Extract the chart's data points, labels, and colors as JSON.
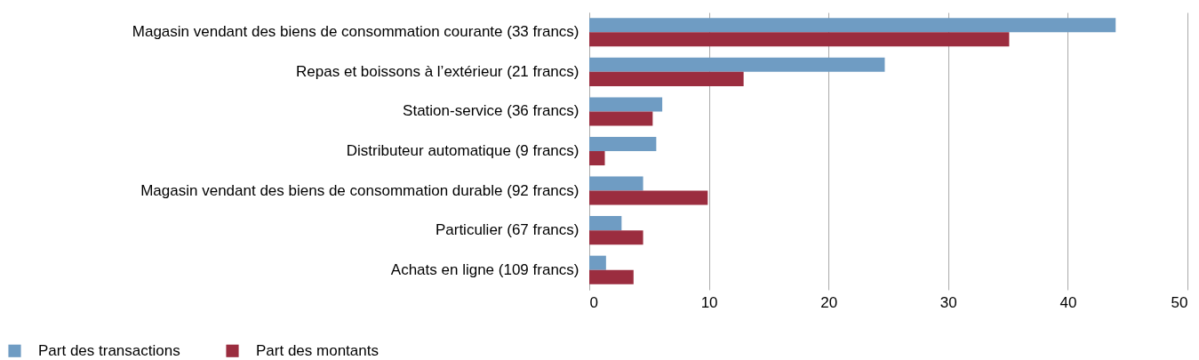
{
  "chart_data": {
    "type": "bar",
    "orientation": "horizontal",
    "categories": [
      "Magasin vendant des biens de consommation courante (33 francs)",
      "Repas et boissons à l’extérieur (21 francs)",
      "Station-service (36 francs)",
      "Distributeur automatique (9 francs)",
      "Magasin vendant des biens de consommation durable (92 francs)",
      "Particulier (67 francs)",
      "Achats en ligne (109 francs)"
    ],
    "series": [
      {
        "name": "Part des transactions",
        "color": "#6f9cc3",
        "values": [
          44.0,
          24.7,
          6.1,
          5.6,
          4.5,
          2.7,
          1.4
        ]
      },
      {
        "name": "Part des montants",
        "color": "#9b2d3f",
        "values": [
          35.1,
          12.9,
          5.3,
          1.3,
          9.9,
          4.5,
          3.7
        ]
      }
    ],
    "xlim": [
      0,
      50
    ],
    "xticks": [
      0,
      10,
      20,
      30,
      40,
      50
    ],
    "grid": "x",
    "legend": "bottom left"
  }
}
